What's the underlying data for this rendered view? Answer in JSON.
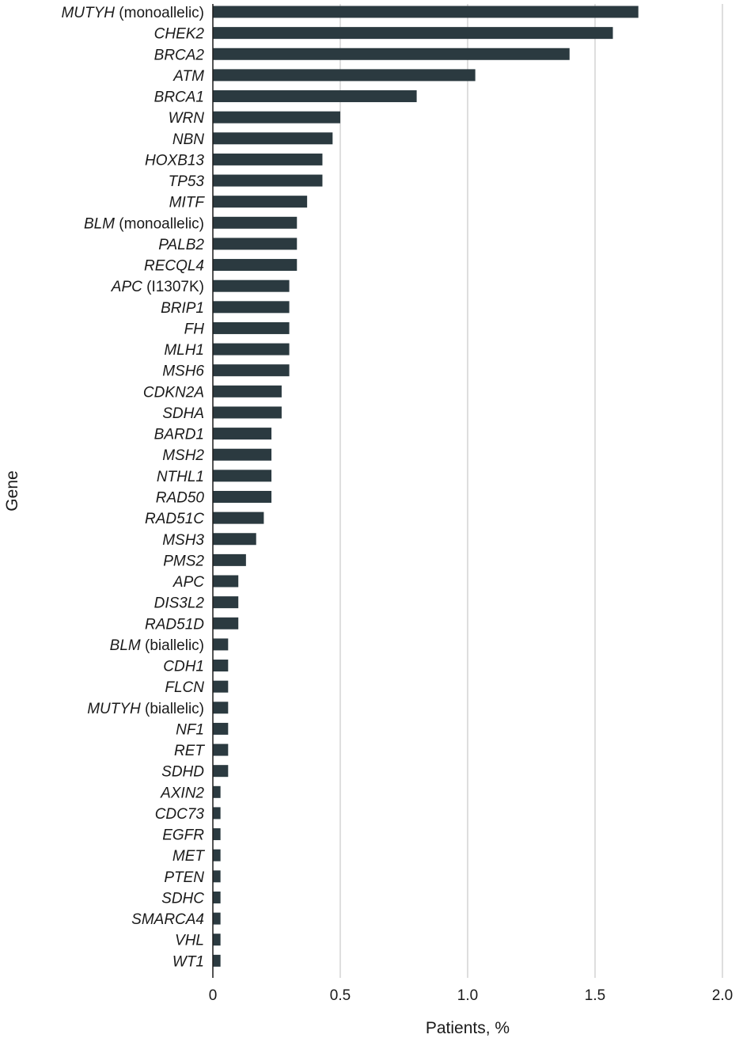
{
  "chart_data": {
    "type": "bar",
    "orientation": "horizontal",
    "xlabel": "Patients, %",
    "ylabel": "Gene",
    "xlim": [
      0,
      2.0
    ],
    "xticks": [
      0,
      0.5,
      1.0,
      1.5,
      2.0
    ],
    "xtick_labels": [
      "0",
      "0.5",
      "1.0",
      "1.5",
      "2.0"
    ],
    "grid": "vertical",
    "bar_color": "#2b3a40",
    "grid_color": "#d3d3d3",
    "categories": [
      {
        "gene": "MUTYH",
        "suffix": " (monoallelic)",
        "value": 1.67
      },
      {
        "gene": "CHEK2",
        "suffix": "",
        "value": 1.57
      },
      {
        "gene": "BRCA2",
        "suffix": "",
        "value": 1.4
      },
      {
        "gene": "ATM",
        "suffix": "",
        "value": 1.03
      },
      {
        "gene": "BRCA1",
        "suffix": "",
        "value": 0.8
      },
      {
        "gene": "WRN",
        "suffix": "",
        "value": 0.5
      },
      {
        "gene": "NBN",
        "suffix": "",
        "value": 0.47
      },
      {
        "gene": "HOXB13",
        "suffix": "",
        "value": 0.43
      },
      {
        "gene": "TP53",
        "suffix": "",
        "value": 0.43
      },
      {
        "gene": "MITF",
        "suffix": "",
        "value": 0.37
      },
      {
        "gene": "BLM",
        "suffix": " (monoallelic)",
        "value": 0.33
      },
      {
        "gene": "PALB2",
        "suffix": "",
        "value": 0.33
      },
      {
        "gene": "RECQL4",
        "suffix": "",
        "value": 0.33
      },
      {
        "gene": "APC",
        "suffix": " (I1307K)",
        "value": 0.3
      },
      {
        "gene": "BRIP1",
        "suffix": "",
        "value": 0.3
      },
      {
        "gene": "FH",
        "suffix": "",
        "value": 0.3
      },
      {
        "gene": "MLH1",
        "suffix": "",
        "value": 0.3
      },
      {
        "gene": "MSH6",
        "suffix": "",
        "value": 0.3
      },
      {
        "gene": "CDKN2A",
        "suffix": "",
        "value": 0.27
      },
      {
        "gene": "SDHA",
        "suffix": "",
        "value": 0.27
      },
      {
        "gene": "BARD1",
        "suffix": "",
        "value": 0.23
      },
      {
        "gene": "MSH2",
        "suffix": "",
        "value": 0.23
      },
      {
        "gene": "NTHL1",
        "suffix": "",
        "value": 0.23
      },
      {
        "gene": "RAD50",
        "suffix": "",
        "value": 0.23
      },
      {
        "gene": "RAD51C",
        "suffix": "",
        "value": 0.2
      },
      {
        "gene": "MSH3",
        "suffix": "",
        "value": 0.17
      },
      {
        "gene": "PMS2",
        "suffix": "",
        "value": 0.13
      },
      {
        "gene": "APC",
        "suffix": "",
        "value": 0.1
      },
      {
        "gene": "DIS3L2",
        "suffix": "",
        "value": 0.1
      },
      {
        "gene": "RAD51D",
        "suffix": "",
        "value": 0.1
      },
      {
        "gene": "BLM",
        "suffix": " (biallelic)",
        "value": 0.06
      },
      {
        "gene": "CDH1",
        "suffix": "",
        "value": 0.06
      },
      {
        "gene": "FLCN",
        "suffix": "",
        "value": 0.06
      },
      {
        "gene": "MUTYH",
        "suffix": " (biallelic)",
        "value": 0.06
      },
      {
        "gene": "NF1",
        "suffix": "",
        "value": 0.06
      },
      {
        "gene": "RET",
        "suffix": "",
        "value": 0.06
      },
      {
        "gene": "SDHD",
        "suffix": "",
        "value": 0.06
      },
      {
        "gene": "AXIN2",
        "suffix": "",
        "value": 0.03
      },
      {
        "gene": "CDC73",
        "suffix": "",
        "value": 0.03
      },
      {
        "gene": "EGFR",
        "suffix": "",
        "value": 0.03
      },
      {
        "gene": "MET",
        "suffix": "",
        "value": 0.03
      },
      {
        "gene": "PTEN",
        "suffix": "",
        "value": 0.03
      },
      {
        "gene": "SDHC",
        "suffix": "",
        "value": 0.03
      },
      {
        "gene": "SMARCA4",
        "suffix": "",
        "value": 0.03
      },
      {
        "gene": "VHL",
        "suffix": "",
        "value": 0.03
      },
      {
        "gene": "WT1",
        "suffix": "",
        "value": 0.03
      }
    ]
  }
}
